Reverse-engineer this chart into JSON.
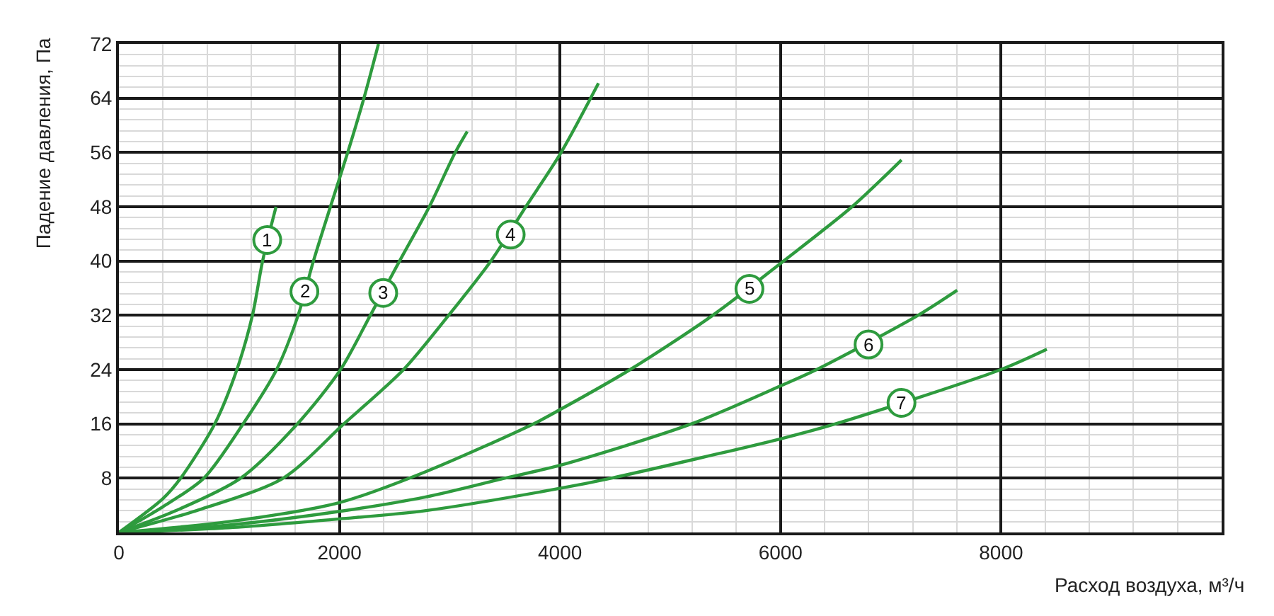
{
  "chart_data": {
    "type": "line",
    "xlabel": "Расход воздуха, м³/ч",
    "ylabel": "Падение давления, Па",
    "xlim": [
      0,
      10000
    ],
    "xticks": [
      0,
      2000,
      4000,
      6000,
      8000
    ],
    "ylim": [
      0,
      72
    ],
    "yticks": [
      8,
      16,
      24,
      32,
      40,
      48,
      56,
      64,
      72
    ],
    "grid": true,
    "line_style": "solid",
    "series": [
      {
        "color": "#2e9b3e",
        "x": [
          0,
          400,
          560,
          869,
          1070,
          1211,
          1303,
          1425
        ],
        "values": [
          0,
          5.0,
          8,
          16,
          24,
          32,
          40,
          48
        ]
      },
      {
        "color": "#2e9b3e",
        "x": [
          0,
          400,
          770,
          1126,
          1430,
          1625,
          1764,
          1918,
          2075,
          2222,
          2354
        ],
        "values": [
          0,
          3.8,
          8,
          16,
          24,
          32,
          40,
          48,
          56,
          64,
          72
        ]
      },
      {
        "color": "#2e9b3e",
        "x": [
          0,
          500,
          1104,
          1618,
          2010,
          2280,
          2545,
          2815,
          3050,
          3159
        ],
        "values": [
          0,
          3.1,
          8,
          16,
          24,
          32,
          40,
          48,
          56,
          59.1
        ]
      },
      {
        "color": "#2e9b3e",
        "x": [
          0,
          700,
          1490,
          2040,
          2581,
          2990,
          3373,
          3690,
          4010,
          4349
        ],
        "values": [
          0,
          3.2,
          8,
          16,
          24,
          32,
          40,
          48,
          56,
          66.2
        ]
      },
      {
        "color": "#2e9b3e",
        "x": [
          0,
          1000,
          2000,
          2774,
          3759,
          4000,
          4636,
          5385,
          6027,
          6648,
          7097
        ],
        "values": [
          0,
          1.6,
          4.4,
          8.9,
          16,
          18.1,
          24,
          32,
          40,
          48,
          54.9
        ]
      },
      {
        "color": "#2e9b3e",
        "x": [
          0,
          1000,
          2000,
          2774,
          3500,
          4000,
          5192,
          6000,
          6327,
          7247,
          7602
        ],
        "values": [
          0,
          1.1,
          3.1,
          5.2,
          8,
          9.9,
          16,
          21.6,
          24,
          32,
          35.7
        ]
      },
      {
        "color": "#2e9b3e",
        "x": [
          0,
          1000,
          2000,
          2774,
          4000,
          4465,
          6000,
          6498,
          7997,
          8415
        ],
        "values": [
          0,
          0.7,
          2.0,
          3.2,
          6.5,
          8,
          13.8,
          16,
          24,
          27.0
        ]
      }
    ],
    "annotations": [
      {
        "text": "1",
        "x": 1345,
        "y": 43.1
      },
      {
        "text": "2",
        "x": 1682,
        "y": 35.5
      },
      {
        "text": "3",
        "x": 2397,
        "y": 35.3
      },
      {
        "text": "4",
        "x": 3553,
        "y": 43.9
      },
      {
        "text": "5",
        "x": 5718,
        "y": 35.9
      },
      {
        "text": "6",
        "x": 6798,
        "y": 27.7
      },
      {
        "text": "7",
        "x": 7097,
        "y": 19.1
      }
    ]
  }
}
